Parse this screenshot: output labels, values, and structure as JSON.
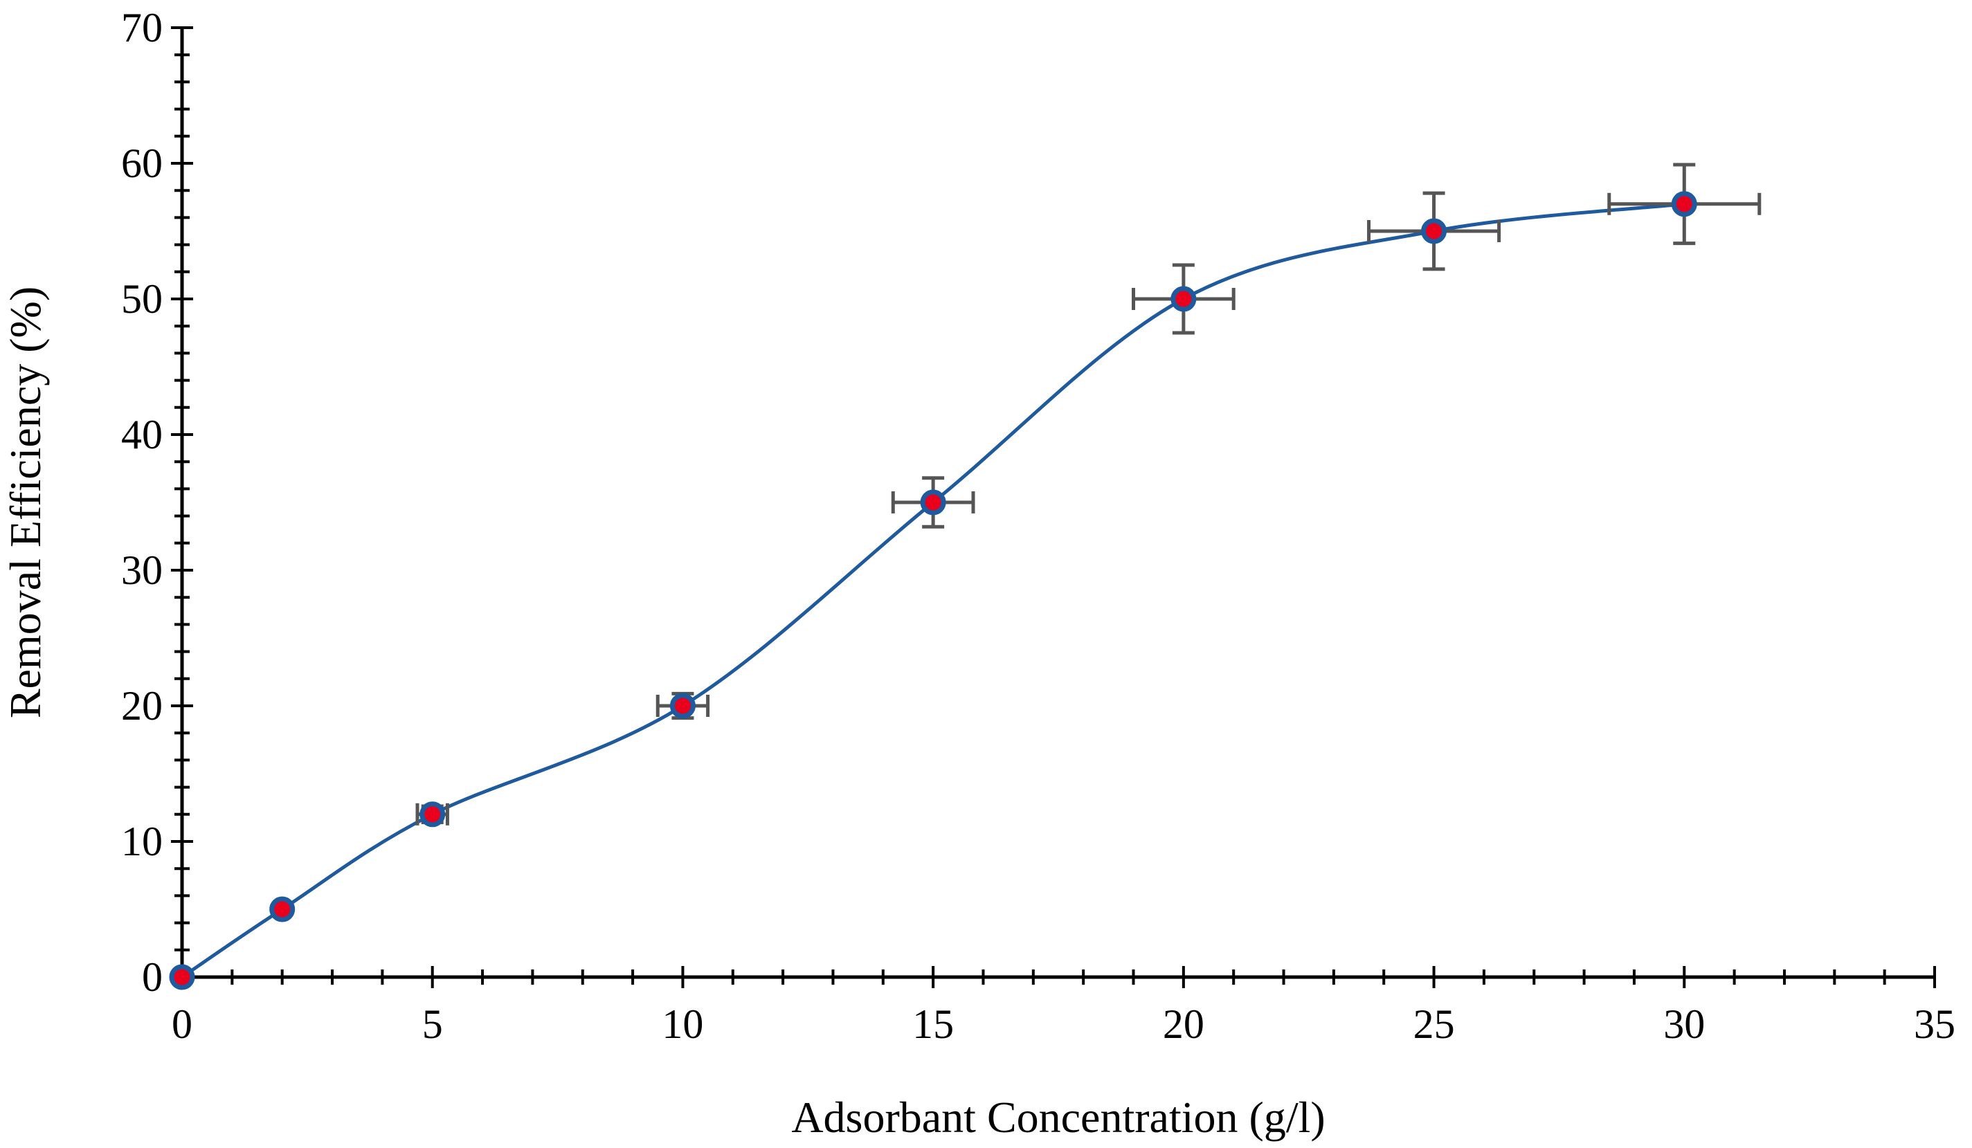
{
  "chart_data": {
    "type": "scatter",
    "title": "",
    "xlabel": "Adsorbant Concentration (g/l)",
    "ylabel": "Removal Efficiency (%)",
    "xlim": [
      0,
      35
    ],
    "ylim": [
      0,
      70
    ],
    "x_ticks": [
      0,
      5,
      10,
      15,
      20,
      25,
      30,
      35
    ],
    "y_ticks": [
      0,
      10,
      20,
      30,
      40,
      50,
      60,
      70
    ],
    "x_minor_step": 1,
    "y_minor_step": 2,
    "smoothed_line": true,
    "grid": false,
    "legend": "none",
    "series": [
      {
        "name": "Removal Efficiency",
        "x": [
          0,
          2,
          5,
          10,
          15,
          20,
          25,
          30
        ],
        "y": [
          0,
          5,
          12,
          20,
          35,
          50,
          55,
          57
        ],
        "x_error": [
          0,
          0,
          0.3,
          0.5,
          0.8,
          1.0,
          1.3,
          1.5
        ],
        "y_error": [
          0,
          0,
          0.6,
          0.9,
          1.8,
          2.5,
          2.8,
          2.9
        ]
      }
    ],
    "colors": {
      "line": "#1f5a9e",
      "marker_fill": "#e8001c",
      "marker_edge": "#1f5a9e",
      "error_bar": "#555555",
      "axis": "#000000"
    }
  }
}
